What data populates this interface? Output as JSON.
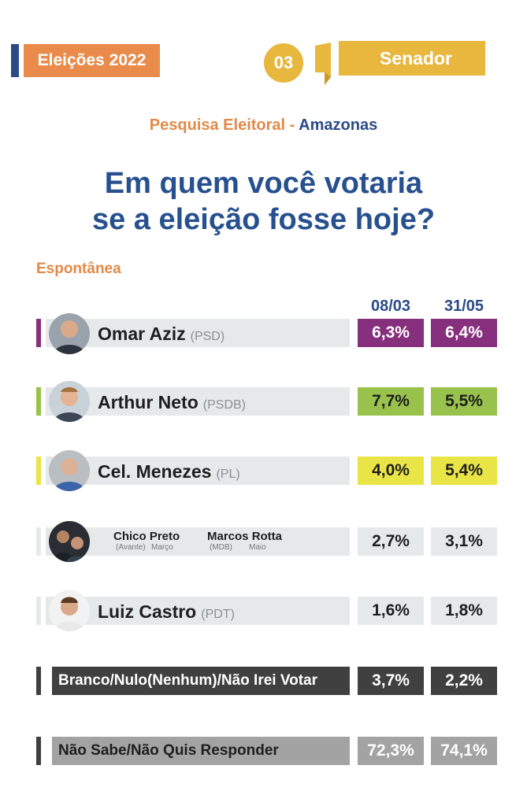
{
  "header": {
    "tag": "Eleições 2022",
    "number": "03",
    "office": "Senador"
  },
  "survey": {
    "label": "Pesquisa Eleitoral",
    "separator": "-",
    "state": "Amazonas"
  },
  "question": {
    "line1": "Em quem você votaria",
    "line2": "se a eleição fosse hoje?"
  },
  "section": "Espontânea",
  "colors": {
    "navy": "#2b4a86",
    "orange": "#e08a49",
    "gold": "#e7b73e",
    "purple": "#862f7d",
    "green": "#99c24d",
    "yellow": "#e9e547",
    "dark": "#404040",
    "gray": "#a3a3a3"
  },
  "chart_data": {
    "type": "table",
    "dates": [
      "08/03",
      "31/05"
    ],
    "rows": [
      {
        "name": "Omar Aziz",
        "party": "(PSD)",
        "values": [
          "6,3%",
          "6,4%"
        ],
        "color": "#862f7d"
      },
      {
        "name": "Arthur Neto",
        "party": "(PSDB)",
        "values": [
          "7,7%",
          "5,5%"
        ],
        "color": "#99c24d"
      },
      {
        "name": "Cel. Menezes",
        "party": "(PL)",
        "values": [
          "4,0%",
          "5,4%"
        ],
        "color": "#e9e547"
      },
      {
        "name": "Chico Preto / Marcos Rotta",
        "party": "",
        "values": [
          "2,7%",
          "3,1%"
        ],
        "color": "#e6e9ea",
        "sub": [
          {
            "name": "Chico Preto",
            "party": "(Avante)",
            "month": "Março"
          },
          {
            "name": "Marcos Rotta",
            "party": "(MDB)",
            "month": "Maio"
          }
        ]
      },
      {
        "name": "Luiz Castro",
        "party": "(PDT)",
        "values": [
          "1,6%",
          "1,8%"
        ],
        "color": "#e6e9ea"
      },
      {
        "name": "Branco/Nulo(Nenhum)/Não Irei Votar",
        "party": "",
        "values": [
          "3,7%",
          "2,2%"
        ],
        "color": "#404040"
      },
      {
        "name": "Não Sabe/Não Quis Responder",
        "party": "",
        "values": [
          "72,3%",
          "74,1%"
        ],
        "color": "#a3a3a3"
      }
    ]
  }
}
